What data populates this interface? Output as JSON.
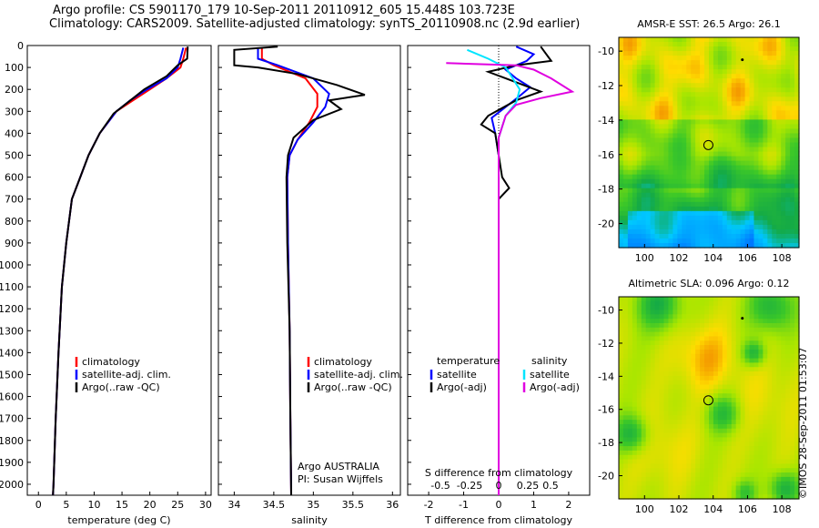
{
  "header": {
    "line1": "Argo profile: CS 5901170_179 10-Sep-2011 20110912_605 15.448S 103.723E",
    "line2": "Climatology: CARS2009. Satellite-adjusted climatology: synTS_20110908.nc (2.9d earlier)"
  },
  "stamp": "©IMOS 28-Sep-2011 01:53:07",
  "colors": {
    "climatology": "#ff0000",
    "satellite": "#0000ff",
    "argo": "#000000",
    "sal_satellite": "#00e5ff",
    "sal_argo": "#e000e0"
  },
  "chart_data": [
    {
      "type": "line",
      "xlabel": "temperature (deg C)",
      "ylabel": "",
      "xlim": [
        -2,
        31
      ],
      "ylim": [
        2050,
        0
      ],
      "xticks": [
        0,
        5,
        10,
        15,
        20,
        25,
        30
      ],
      "yticks": [
        0,
        100,
        200,
        300,
        400,
        500,
        600,
        700,
        800,
        900,
        1000,
        1100,
        1200,
        1300,
        1400,
        1500,
        1600,
        1700,
        1800,
        1900,
        2000
      ],
      "legend": [
        "climatology",
        "satellite-adj. clim.",
        "Argo(..raw -QC)"
      ],
      "series": [
        {
          "name": "climatology",
          "color": "#ff0000",
          "points": [
            [
              26.5,
              10
            ],
            [
              26,
              60
            ],
            [
              25.5,
              100
            ],
            [
              23,
              150
            ],
            [
              20,
              200
            ],
            [
              17,
              250
            ],
            [
              14,
              300
            ],
            [
              11,
              400
            ],
            [
              9,
              500
            ],
            [
              7.5,
              600
            ],
            [
              6,
              700
            ],
            [
              5,
              900
            ],
            [
              4.2,
              1100
            ],
            [
              3.6,
              1400
            ],
            [
              3.1,
              1700
            ],
            [
              2.7,
              2000
            ],
            [
              2.6,
              2050
            ]
          ]
        },
        {
          "name": "satellite-adj. clim.",
          "color": "#0000ff",
          "points": [
            [
              26,
              10
            ],
            [
              25.5,
              60
            ],
            [
              25,
              100
            ],
            [
              23,
              150
            ],
            [
              19.5,
              200
            ],
            [
              16.5,
              250
            ],
            [
              14,
              300
            ],
            [
              11,
              400
            ],
            [
              9,
              500
            ],
            [
              7.5,
              600
            ],
            [
              6,
              700
            ],
            [
              5,
              900
            ],
            [
              4.2,
              1100
            ],
            [
              3.6,
              1400
            ],
            [
              3.1,
              1700
            ],
            [
              2.7,
              2000
            ],
            [
              2.6,
              2050
            ]
          ]
        },
        {
          "name": "Argo(..raw -QC)",
          "color": "#000000",
          "points": [
            [
              26.8,
              5
            ],
            [
              26.7,
              60
            ],
            [
              25,
              90
            ],
            [
              23,
              140
            ],
            [
              19,
              200
            ],
            [
              16,
              260
            ],
            [
              13.5,
              310
            ],
            [
              11,
              400
            ],
            [
              9,
              500
            ],
            [
              7.5,
              600
            ],
            [
              6,
              700
            ],
            [
              5,
              900
            ],
            [
              4.2,
              1100
            ],
            [
              3.6,
              1400
            ],
            [
              3.1,
              1700
            ],
            [
              2.7,
              2000
            ],
            [
              2.6,
              2050
            ]
          ]
        }
      ]
    },
    {
      "type": "line",
      "xlabel": "salinity",
      "ylabel": "",
      "xlim": [
        33.8,
        36.1
      ],
      "ylim": [
        2050,
        0
      ],
      "xticks": [
        34,
        34.5,
        35,
        35.5,
        36
      ],
      "legend": [
        "climatology",
        "satellite-adj. clim.",
        "Argo(..raw -QC)"
      ],
      "annotation": [
        "Argo AUSTRALIA",
        "PI: Susan Wijffels"
      ],
      "series": [
        {
          "name": "climatology",
          "color": "#ff0000",
          "points": [
            [
              34.35,
              10
            ],
            [
              34.35,
              60
            ],
            [
              34.5,
              90
            ],
            [
              34.9,
              150
            ],
            [
              35.05,
              220
            ],
            [
              35.05,
              280
            ],
            [
              34.95,
              350
            ],
            [
              34.8,
              430
            ],
            [
              34.7,
              500
            ],
            [
              34.67,
              600
            ],
            [
              34.68,
              900
            ],
            [
              34.7,
              1300
            ],
            [
              34.71,
              1700
            ],
            [
              34.72,
              2050
            ]
          ]
        },
        {
          "name": "satellite-adj. clim.",
          "color": "#0000ff",
          "points": [
            [
              34.3,
              10
            ],
            [
              34.3,
              60
            ],
            [
              34.55,
              90
            ],
            [
              35,
              150
            ],
            [
              35.2,
              220
            ],
            [
              35.15,
              280
            ],
            [
              35,
              350
            ],
            [
              34.8,
              430
            ],
            [
              34.7,
              500
            ],
            [
              34.67,
              600
            ],
            [
              34.68,
              900
            ],
            [
              34.7,
              1300
            ],
            [
              34.71,
              1700
            ],
            [
              34.72,
              2050
            ]
          ]
        },
        {
          "name": "Argo(..raw -QC)",
          "color": "#000000",
          "points": [
            [
              34.55,
              5
            ],
            [
              34.0,
              20
            ],
            [
              34.0,
              90
            ],
            [
              34.3,
              100
            ],
            [
              34.8,
              130
            ],
            [
              35.3,
              180
            ],
            [
              35.65,
              225
            ],
            [
              35.2,
              250
            ],
            [
              35.35,
              290
            ],
            [
              35.0,
              340
            ],
            [
              34.75,
              420
            ],
            [
              34.68,
              500
            ],
            [
              34.66,
              600
            ],
            [
              34.67,
              900
            ],
            [
              34.7,
              1300
            ],
            [
              34.71,
              1700
            ],
            [
              34.72,
              2050
            ]
          ]
        }
      ]
    },
    {
      "type": "line",
      "xlabel": "T difference from climatology",
      "x2label": "S difference from climatology",
      "xlim": [
        -2.6,
        2.6
      ],
      "ylim": [
        2050,
        0
      ],
      "xticks": [
        -2,
        -1,
        0,
        1,
        2
      ],
      "x2ticks": [
        "-0.5",
        "-0.25",
        "0",
        "0.25",
        "0.5"
      ],
      "legend_headers": [
        "temperature",
        "salinity"
      ],
      "legend": [
        "satellite",
        "Argo(-adj)",
        "satellite",
        "Argo(-adj)"
      ],
      "series": [
        {
          "name": "temperature satellite",
          "color": "#0000ff",
          "points": [
            [
              0.5,
              5
            ],
            [
              1.0,
              40
            ],
            [
              0.8,
              70
            ],
            [
              0.2,
              110
            ],
            [
              0.5,
              150
            ],
            [
              0.9,
              190
            ],
            [
              0.6,
              230
            ],
            [
              0.2,
              280
            ],
            [
              -0.2,
              330
            ],
            [
              -0.1,
              400
            ],
            [
              0,
              500
            ],
            [
              0,
              2050
            ]
          ]
        },
        {
          "name": "temperature Argo(-adj)",
          "color": "#000000",
          "points": [
            [
              1.2,
              5
            ],
            [
              1.5,
              70
            ],
            [
              0.5,
              90
            ],
            [
              -0.3,
              120
            ],
            [
              0.2,
              150
            ],
            [
              1.2,
              210
            ],
            [
              0.5,
              250
            ],
            [
              -0.3,
              320
            ],
            [
              -0.5,
              360
            ],
            [
              -0.1,
              400
            ],
            [
              0,
              500
            ],
            [
              0.1,
              600
            ],
            [
              0.3,
              650
            ],
            [
              0,
              700
            ],
            [
              0,
              2050
            ]
          ]
        },
        {
          "name": "salinity satellite",
          "color": "#00e5ff",
          "points": [
            [
              -0.9,
              20
            ],
            [
              -0.3,
              60
            ],
            [
              0.2,
              100
            ],
            [
              0.4,
              150
            ],
            [
              0.6,
              200
            ],
            [
              0.5,
              260
            ],
            [
              0.2,
              320
            ],
            [
              0,
              420
            ],
            [
              0,
              2050
            ]
          ]
        },
        {
          "name": "salinity Argo(-adj)",
          "color": "#e000e0",
          "points": [
            [
              -1.5,
              80
            ],
            [
              0.5,
              90
            ],
            [
              1.0,
              110
            ],
            [
              1.5,
              150
            ],
            [
              2.1,
              210
            ],
            [
              1.2,
              240
            ],
            [
              0.5,
              270
            ],
            [
              0.2,
              320
            ],
            [
              0,
              420
            ],
            [
              0,
              2050
            ]
          ]
        }
      ]
    },
    {
      "type": "heatmap",
      "title": "AMSR-E SST: 26.5 Argo: 26.1",
      "xlim": [
        98.5,
        109
      ],
      "ylim": [
        -21.4,
        -9.2
      ],
      "xticks": [
        100,
        102,
        104,
        106,
        108
      ],
      "yticks": [
        -10,
        -12,
        -14,
        -16,
        -18,
        -20
      ],
      "marker": [
        103.72,
        -15.45
      ]
    },
    {
      "type": "heatmap",
      "title": "Altimetric SLA: 0.096 Argo: 0.12",
      "xlim": [
        98.5,
        109
      ],
      "ylim": [
        -21.4,
        -9.2
      ],
      "xticks": [
        100,
        102,
        104,
        106,
        108
      ],
      "yticks": [
        -10,
        -12,
        -14,
        -16,
        -18,
        -20
      ],
      "marker": [
        103.72,
        -15.45
      ]
    }
  ]
}
